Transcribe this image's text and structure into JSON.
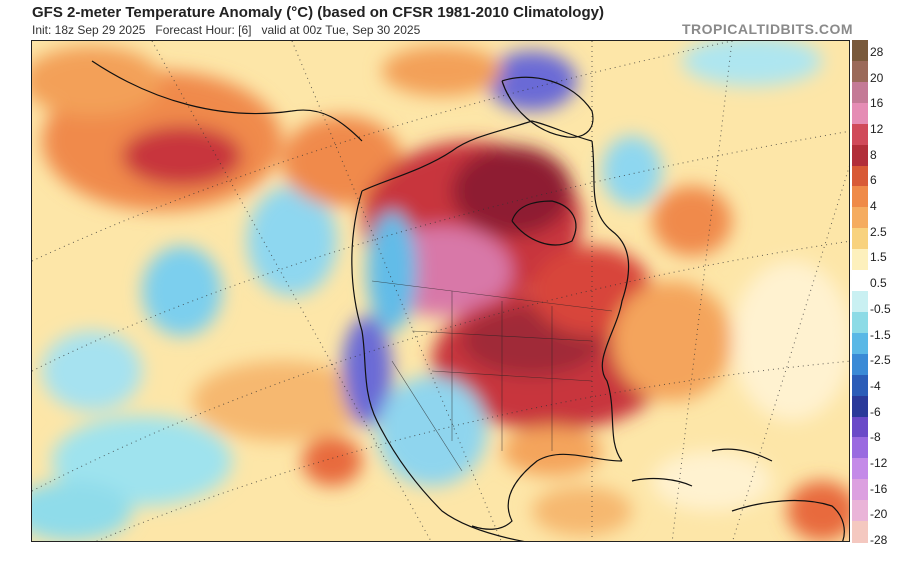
{
  "header": {
    "title": "GFS 2-meter Temperature Anomaly (°C) (based on CFSR 1981-2010 Climatology)",
    "init": "Init: 18z Sep 29 2025",
    "forecast_hour": "Forecast Hour: [6]",
    "valid": "valid at 00z Tue, Sep 30 2025",
    "credit": "TROPICALTIDBITS.COM"
  },
  "legend": {
    "labels": [
      "28",
      "20",
      "16",
      "12",
      "8",
      "6",
      "4",
      "2.5",
      "1.5",
      "0.5",
      "-0.5",
      "-1.5",
      "-2.5",
      "-4",
      "-6",
      "-8",
      "-12",
      "-16",
      "-20",
      "-28"
    ],
    "colors": [
      "#7a5a3c",
      "#9b6a5a",
      "#c47a96",
      "#e58cb4",
      "#d04a5a",
      "#b22f3a",
      "#d85a36",
      "#ef8a48",
      "#f5ac60",
      "#f8d27e",
      "#fdf0bd",
      "#ffffff",
      "#c9f0f2",
      "#8cdbe6",
      "#5ab8e6",
      "#3a8ad6",
      "#2b5db8",
      "#2a3a9a",
      "#6a4ac8",
      "#9a6ae0",
      "#c48ae8",
      "#dca0e0",
      "#eab4d8",
      "#f4c8c0"
    ],
    "units": "°C"
  },
  "map": {
    "region": "North America",
    "projection": "polar stereographic",
    "colors": {
      "warm_strong": "#8e1f33",
      "warm": "#c8343c",
      "warm_mid": "#e6603c",
      "warm_light": "#f4a45c",
      "neutral_warm": "#fde1a0",
      "neutral": "#fff8e0",
      "cool_light": "#aee6f0",
      "cool": "#62bce8",
      "cool_strong": "#3a6ed0",
      "cold_extreme": "#6a4ad0",
      "hot_extreme": "#d878a8"
    }
  }
}
